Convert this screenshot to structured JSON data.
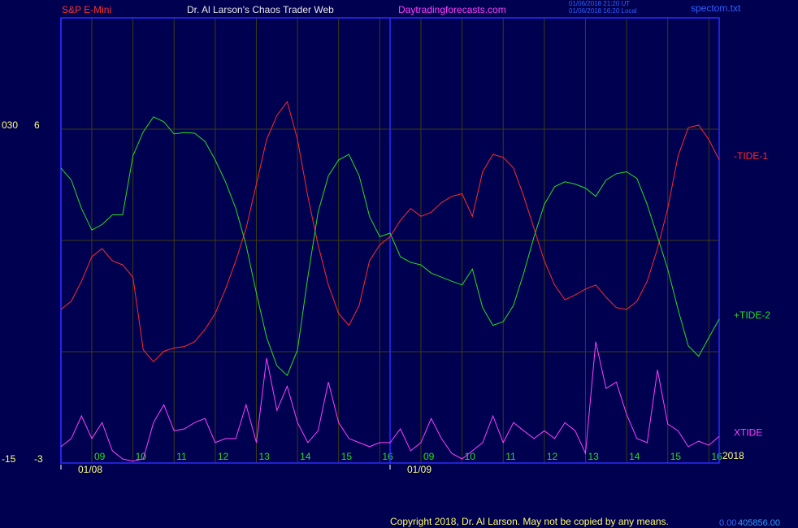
{
  "chart_data": {
    "type": "line",
    "header": {
      "instrument": "S&P E-Mini",
      "site_title": "Dr. Al Larson's Chaos Trader Web",
      "site_url": "Daytradingforecasts.com",
      "time_ut": "01/06/2018 21:20 UT",
      "time_local": "01/06/2018 16:20 Local",
      "file": "spectom.txt"
    },
    "footer": {
      "copyright": "Copyright 2018, Dr. Al Larson. May not be copied by any means.",
      "value_a": "0.00",
      "value_b": "405856.00",
      "year": "2018"
    },
    "x": [
      0,
      0.25,
      0.5,
      0.75,
      1,
      1.25,
      1.5,
      1.75,
      2,
      2.25,
      2.5,
      2.75,
      3,
      3.25,
      3.5,
      3.75,
      4,
      4.25,
      4.5,
      4.75,
      5,
      5.25,
      5.5,
      5.75,
      6,
      6.25,
      6.5,
      6.75,
      7,
      7.25,
      7.5,
      7.75,
      8,
      8.25,
      8.5,
      8.75,
      9,
      9.25,
      9.5,
      9.75,
      10,
      10.25,
      10.5,
      10.75,
      11,
      11.25,
      11.5,
      11.75,
      12,
      12.25,
      12.5,
      12.75,
      13,
      13.25,
      13.5,
      13.75,
      14,
      14.25,
      14.5,
      14.75,
      15,
      15.25,
      15.5,
      15.75,
      16
    ],
    "xlim": [
      0,
      16
    ],
    "xticks": [
      {
        "value": 0.75,
        "label": "09"
      },
      {
        "value": 1.75,
        "label": "10"
      },
      {
        "value": 2.75,
        "label": "11"
      },
      {
        "value": 3.75,
        "label": "12"
      },
      {
        "value": 4.75,
        "label": "13"
      },
      {
        "value": 5.75,
        "label": "14"
      },
      {
        "value": 6.75,
        "label": "15"
      },
      {
        "value": 7.75,
        "label": "16"
      },
      {
        "value": 8.75,
        "label": "09"
      },
      {
        "value": 9.75,
        "label": "10"
      },
      {
        "value": 10.75,
        "label": "11"
      },
      {
        "value": 11.75,
        "label": "12"
      },
      {
        "value": 12.75,
        "label": "13"
      },
      {
        "value": 13.75,
        "label": "14"
      },
      {
        "value": 14.75,
        "label": "15"
      },
      {
        "value": 15.75,
        "label": "16"
      }
    ],
    "date_ticks": [
      {
        "value": 0,
        "label": "01/08"
      },
      {
        "value": 8,
        "label": "01/09"
      }
    ],
    "ylim": [
      -3,
      9
    ],
    "yticks": [
      -3,
      6
    ],
    "minor_yticks": [
      0,
      3
    ],
    "y2lim": [
      -15,
      45
    ],
    "y2ticks": [
      -15,
      {
        "value": 30,
        "label": "030"
      }
    ],
    "grid": true,
    "series": [
      {
        "name": "-TIDE-1",
        "color": "#ff2a2a",
        "values": [
          1.14,
          1.36,
          1.9,
          2.56,
          2.78,
          2.45,
          2.34,
          2.01,
          0.05,
          -0.27,
          0.01,
          0.1,
          0.14,
          0.27,
          0.6,
          1.03,
          1.69,
          2.45,
          3.32,
          4.52,
          5.72,
          6.37,
          6.74,
          5.72,
          4.19,
          2.88,
          1.8,
          1.03,
          0.71,
          1.25,
          2.45,
          2.88,
          3.1,
          3.54,
          3.86,
          3.65,
          3.76,
          4.02,
          4.19,
          4.26,
          3.65,
          4.85,
          5.32,
          5.24,
          4.95,
          4.19,
          3.32,
          2.45,
          1.8,
          1.4,
          1.53,
          1.69,
          1.8,
          1.47,
          1.19,
          1.14,
          1.36,
          1.9,
          2.78,
          3.86,
          5.28,
          6.04,
          6.11,
          5.72,
          5.17
        ]
      },
      {
        "name": "+TIDE-2",
        "color": "#22e022",
        "values": [
          4.95,
          4.63,
          3.86,
          3.28,
          3.43,
          3.69,
          3.69,
          5.28,
          5.93,
          6.33,
          6.2,
          5.87,
          5.91,
          5.89,
          5.67,
          5.17,
          4.58,
          3.86,
          2.88,
          1.58,
          0.38,
          -0.38,
          -0.64,
          0.05,
          2.01,
          3.76,
          4.74,
          5.17,
          5.32,
          4.74,
          3.65,
          3.1,
          3.2,
          2.56,
          2.41,
          2.34,
          2.12,
          2.01,
          1.9,
          1.8,
          2.23,
          1.19,
          0.71,
          0.81,
          1.25,
          2.12,
          3.1,
          3.97,
          4.45,
          4.58,
          4.52,
          4.41,
          4.19,
          4.63,
          4.8,
          4.85,
          4.67,
          3.97,
          3.1,
          2.23,
          1.14,
          0.16,
          -0.12,
          0.38,
          0.88
        ]
      },
      {
        "name": "XTIDE",
        "color": "#ff40ff",
        "values": [
          -2.56,
          -2.34,
          -1.73,
          -2.34,
          -1.91,
          -2.67,
          -2.89,
          -2.95,
          -2.89,
          -1.91,
          -1.43,
          -2.13,
          -2.08,
          -1.91,
          -1.8,
          -2.45,
          -2.34,
          -2.34,
          -1.43,
          -2.45,
          -0.17,
          -1.58,
          -0.93,
          -1.91,
          -2.45,
          -2.13,
          -0.82,
          -1.91,
          -2.34,
          -2.45,
          -2.56,
          -2.45,
          -2.45,
          -2.08,
          -2.67,
          -2.45,
          -1.8,
          -2.34,
          -2.74,
          -2.89,
          -2.67,
          -2.45,
          -1.73,
          -2.45,
          -1.91,
          -2.13,
          -2.34,
          -2.13,
          -2.34,
          -1.91,
          -2.13,
          -2.74,
          0.27,
          -0.99,
          -0.82,
          -1.69,
          -2.34,
          -2.45,
          -0.49,
          -1.95,
          -2.13,
          -2.56,
          -2.41,
          -2.52,
          -2.28
        ]
      }
    ]
  }
}
